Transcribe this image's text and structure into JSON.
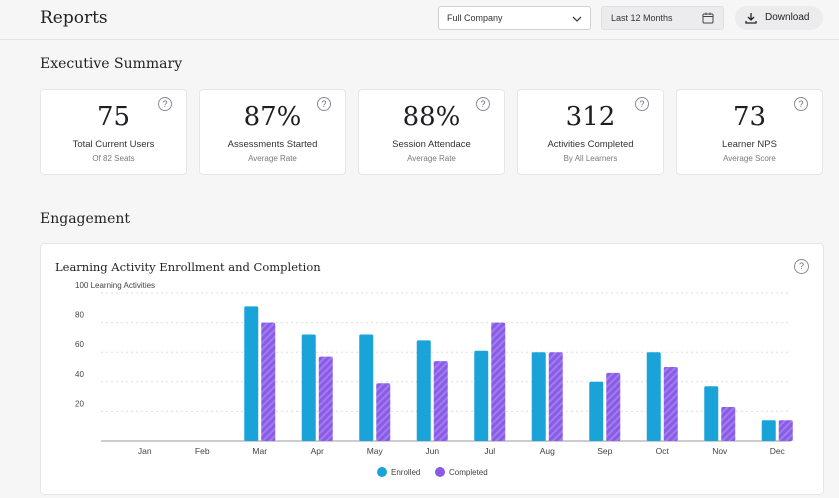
{
  "header": {
    "title": "Reports",
    "company_filter": "Full Company",
    "date_filter": "Last 12 Months",
    "download_label": "Download"
  },
  "summary": {
    "title": "Executive Summary",
    "kpis": [
      {
        "value": "75",
        "label": "Total Current Users",
        "sub": "Of 82 Seats"
      },
      {
        "value": "87%",
        "label": "Assessments Started",
        "sub": "Average Rate"
      },
      {
        "value": "88%",
        "label": "Session Attendace",
        "sub": "Average Rate"
      },
      {
        "value": "312",
        "label": "Activities Completed",
        "sub": "By All Learners"
      },
      {
        "value": "73",
        "label": "Learner NPS",
        "sub": "Average Score"
      }
    ],
    "help_glyph": "?"
  },
  "engagement": {
    "title": "Engagement",
    "chart_title": "Learning Activity Enrollment and Completion"
  },
  "colors": {
    "enrolled": "#1aa3d9",
    "completed": "#8a5ce6",
    "completed_stripe": "#a07cf0",
    "grid": "#dcdce2"
  },
  "chart_data": {
    "type": "bar",
    "title": "Learning Activity Enrollment and Completion",
    "ylabel": "Learning Activities",
    "ylim": [
      0,
      100
    ],
    "yticks": [
      20,
      40,
      60,
      80,
      100
    ],
    "ytick_labels": [
      "20",
      "40",
      "60",
      "80",
      "100 Learning Activities"
    ],
    "grid": true,
    "legend_position": "bottom-center",
    "categories": [
      "Jan",
      "Feb",
      "Mar",
      "Apr",
      "May",
      "Jun",
      "Jul",
      "Aug",
      "Sep",
      "Oct",
      "Nov",
      "Dec"
    ],
    "series": [
      {
        "name": "Enrolled",
        "values": [
          0,
          0,
          91,
          72,
          72,
          68,
          61,
          60,
          40,
          60,
          37,
          14
        ]
      },
      {
        "name": "Completed",
        "values": [
          0,
          0,
          80,
          57,
          39,
          54,
          80,
          60,
          46,
          50,
          23,
          14
        ]
      }
    ]
  }
}
